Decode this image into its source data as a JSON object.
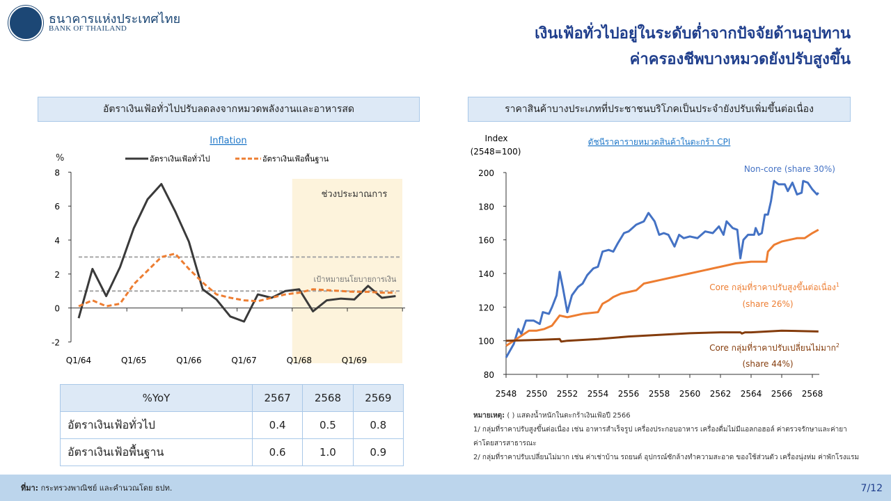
{
  "header": {
    "org_name_th": "ธนาคารแห่งประเทศไทย",
    "org_name_en": "BANK OF THAILAND",
    "title_line1": "เงินเฟ้อทั่วไปอยู่ในระดับต่ำจากปัจจัยด้านอุปทาน",
    "title_line2": "ค่าครองชีพบางหมวดยังปรับสูงขึ้น"
  },
  "left_panel": {
    "heading": "อัตราเงินเฟ้อทั่วไปปรับลดลงจากหมวดพลังงานและอาหารสด"
  },
  "right_panel": {
    "heading": "ราคาสินค้าบางประเภทที่ประชาชนบริโภคเป็นประจำยังปรับเพิ่มขึ้นต่อเนื่อง"
  },
  "chart_data": [
    {
      "type": "line",
      "title": "Inflation",
      "ylabel": "%",
      "ylim": [
        -2,
        8
      ],
      "yticks": [
        -2,
        0,
        2,
        4,
        6,
        8
      ],
      "x": [
        "Q1/64",
        "Q2/64",
        "Q3/64",
        "Q4/64",
        "Q1/65",
        "Q2/65",
        "Q3/65",
        "Q4/65",
        "Q1/66",
        "Q2/66",
        "Q3/66",
        "Q4/66",
        "Q1/67",
        "Q2/67",
        "Q3/67",
        "Q4/67",
        "Q1/68",
        "Q2/68",
        "Q3/68",
        "Q4/68",
        "Q1/69",
        "Q2/69",
        "Q3/69",
        "Q4/69"
      ],
      "xtick_labels": [
        "Q1/64",
        "Q1/65",
        "Q1/66",
        "Q1/67",
        "Q1/68",
        "Q1/69"
      ],
      "series": [
        {
          "name": "อัตราเงินเฟ้อทั่วไป",
          "color": "#3a3a3a",
          "style": "solid",
          "values": [
            -0.6,
            2.3,
            0.7,
            2.4,
            4.7,
            6.4,
            7.3,
            5.7,
            3.9,
            1.1,
            0.5,
            -0.5,
            -0.8,
            0.8,
            0.6,
            1.0,
            1.1,
            -0.2,
            0.45,
            0.55,
            0.5,
            1.3,
            0.6,
            0.7
          ]
        },
        {
          "name": "อัตราเงินเฟ้อพื้นฐาน",
          "color": "#ed7d31",
          "style": "dashed",
          "values": [
            0.1,
            0.45,
            0.1,
            0.25,
            1.4,
            2.2,
            3.0,
            3.2,
            2.3,
            1.5,
            0.8,
            0.6,
            0.45,
            0.4,
            0.6,
            0.8,
            0.9,
            1.1,
            1.05,
            1.0,
            0.95,
            0.95,
            0.9,
            0.9
          ]
        }
      ],
      "target_band": [
        1,
        3
      ],
      "target_label": "เป้าหมายนโยบายการเงิน",
      "forecast_label": "ช่วงประมาณการ",
      "forecast_start": "Q1/68",
      "forecast_color": "#fdf3dc",
      "grid": false,
      "legend": "top"
    },
    {
      "type": "line",
      "title": "ดัชนีราคารายหมวดสินค้าในตะกร้า CPI",
      "ylabel_line1": "Index",
      "ylabel_line2": "(2548=100)",
      "ylim": [
        80,
        200
      ],
      "yticks": [
        80,
        100,
        120,
        140,
        160,
        180,
        200
      ],
      "xlim": [
        2548,
        2568.4
      ],
      "xticks": [
        2548,
        2550,
        2552,
        2554,
        2556,
        2558,
        2560,
        2562,
        2564,
        2566,
        2568
      ],
      "grid": false,
      "series": [
        {
          "name": "Non-core (share 30%)",
          "color": "#4472c4",
          "points": [
            [
              2548,
              90
            ],
            [
              2548.5,
              98
            ],
            [
              2548.8,
              107
            ],
            [
              2549,
              104
            ],
            [
              2549.3,
              112
            ],
            [
              2549.8,
              112
            ],
            [
              2550.2,
              110
            ],
            [
              2550.4,
              117
            ],
            [
              2550.8,
              116
            ],
            [
              2551,
              120
            ],
            [
              2551.3,
              127
            ],
            [
              2551.5,
              141
            ],
            [
              2551.7,
              132
            ],
            [
              2552,
              117
            ],
            [
              2552.3,
              127
            ],
            [
              2552.7,
              132
            ],
            [
              2553,
              134
            ],
            [
              2553.3,
              139
            ],
            [
              2553.7,
              143
            ],
            [
              2554,
              144
            ],
            [
              2554.3,
              153
            ],
            [
              2554.7,
              154
            ],
            [
              2555,
              153
            ],
            [
              2555.3,
              158
            ],
            [
              2555.7,
              164
            ],
            [
              2556,
              165
            ],
            [
              2556.5,
              169
            ],
            [
              2557,
              171
            ],
            [
              2557.3,
              176
            ],
            [
              2557.7,
              171
            ],
            [
              2558,
              163
            ],
            [
              2558.3,
              164
            ],
            [
              2558.6,
              163
            ],
            [
              2559,
              156
            ],
            [
              2559.3,
              163
            ],
            [
              2559.6,
              161
            ],
            [
              2560,
              162
            ],
            [
              2560.5,
              161
            ],
            [
              2561,
              165
            ],
            [
              2561.5,
              164
            ],
            [
              2561.9,
              168
            ],
            [
              2562.2,
              163
            ],
            [
              2562.4,
              171
            ],
            [
              2562.8,
              167
            ],
            [
              2563.1,
              166
            ],
            [
              2563.3,
              149
            ],
            [
              2563.5,
              160
            ],
            [
              2563.8,
              163
            ],
            [
              2564.2,
              163
            ],
            [
              2564.3,
              167
            ],
            [
              2564.5,
              163
            ],
            [
              2564.7,
              164
            ],
            [
              2564.9,
              175
            ],
            [
              2565.1,
              175
            ],
            [
              2565.3,
              183
            ],
            [
              2565.5,
              195
            ],
            [
              2565.8,
              193
            ],
            [
              2566.2,
              193
            ],
            [
              2566.4,
              189
            ],
            [
              2566.7,
              194
            ],
            [
              2567,
              187
            ],
            [
              2567.3,
              188
            ],
            [
              2567.4,
              195
            ],
            [
              2567.7,
              194
            ],
            [
              2568,
              190
            ],
            [
              2568.3,
              187
            ],
            [
              2568.4,
              188
            ]
          ]
        },
        {
          "name": "Core กลุ่มที่ราคาปรับสูงขึ้นต่อเนื่อง",
          "sup": "1",
          "share": "(share 26%)",
          "color": "#ed7d31",
          "points": [
            [
              2548,
              97
            ],
            [
              2548.5,
              100
            ],
            [
              2549,
              103
            ],
            [
              2549.5,
              106
            ],
            [
              2550,
              106
            ],
            [
              2550.5,
              107
            ],
            [
              2551,
              109
            ],
            [
              2551.5,
              115
            ],
            [
              2552,
              114
            ],
            [
              2553,
              116
            ],
            [
              2554,
              117
            ],
            [
              2554.3,
              122
            ],
            [
              2554.7,
              124
            ],
            [
              2555,
              126
            ],
            [
              2555.5,
              128
            ],
            [
              2556,
              129
            ],
            [
              2556.5,
              130
            ],
            [
              2557,
              134
            ],
            [
              2557.5,
              135
            ],
            [
              2558,
              136
            ],
            [
              2559,
              138
            ],
            [
              2559.5,
              139
            ],
            [
              2560,
              140
            ],
            [
              2561,
              142
            ],
            [
              2561.5,
              143
            ],
            [
              2562,
              144
            ],
            [
              2563,
              146
            ],
            [
              2564,
              147
            ],
            [
              2565,
              147
            ],
            [
              2565.1,
              153
            ],
            [
              2565.5,
              157
            ],
            [
              2566,
              159
            ],
            [
              2567,
              161
            ],
            [
              2567.5,
              161
            ],
            [
              2568,
              164
            ],
            [
              2568.4,
              166
            ]
          ]
        },
        {
          "name": "Core กลุ่มที่ราคาปรับเปลี่ยนไม่มาก",
          "sup": "2",
          "share": "(share 44%)",
          "color": "#843c0c",
          "points": [
            [
              2548,
              100
            ],
            [
              2550,
              100.5
            ],
            [
              2551.5,
              101
            ],
            [
              2551.6,
              99.5
            ],
            [
              2552,
              100
            ],
            [
              2553,
              100.5
            ],
            [
              2554,
              101
            ],
            [
              2556,
              102.5
            ],
            [
              2558,
              103.5
            ],
            [
              2560,
              104.5
            ],
            [
              2562,
              105
            ],
            [
              2563.3,
              105
            ],
            [
              2563.4,
              104.3
            ],
            [
              2563.6,
              105
            ],
            [
              2564,
              105
            ],
            [
              2566,
              106
            ],
            [
              2568.4,
              105.5
            ]
          ]
        }
      ]
    }
  ],
  "table": {
    "header": [
      "%YoY",
      "2567",
      "2568",
      "2569"
    ],
    "rows": [
      [
        "อัตราเงินเฟ้อทั่วไป",
        "0.4",
        "0.5",
        "0.8"
      ],
      [
        "อัตราเงินเฟ้อพื้นฐาน",
        "0.6",
        "1.0",
        "0.9"
      ]
    ]
  },
  "notes": {
    "label": "หมายเหตุ:",
    "line0": "( ) แสดงน้ำหนักในตะกร้าเงินเฟ้อปี 2566",
    "line1": "1/ กลุ่มที่ราคาปรับสูงขึ้นต่อเนื่อง เช่น อาหารสำเร็จรูป เครื่องประกอบอาหาร เครื่องดื่มไม่มีแอลกอฮอล์ ค่าตรวจรักษาและค่ายา",
    "line1b": "ค่าโดยสารสาธารณะ",
    "line2": "2/ กลุ่มที่ราคาปรับเปลี่ยนไม่มาก เช่น ค่าเช่าบ้าน รถยนต์ อุปกรณ์ซักล้างทำความสะอาด ของใช้ส่วนตัว เครื่องนุ่งห่ม ค่าพักโรงแรม"
  },
  "footer": {
    "source_label": "ที่มา:",
    "source_text": " กระทรวงพาณิชย์ และคำนวณโดย ธปท.",
    "page": "7/12"
  }
}
